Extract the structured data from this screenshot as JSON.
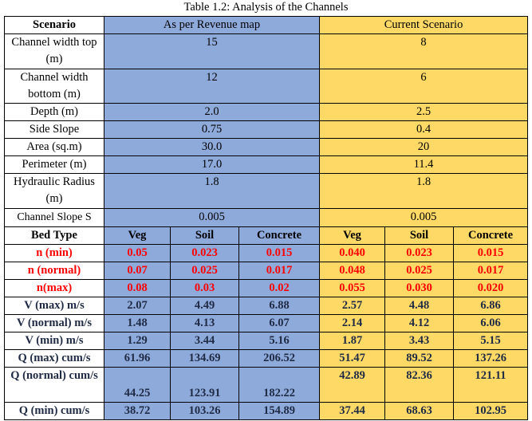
{
  "title": "Table 1.2: Analysis of the Channels",
  "colors": {
    "revenue_bg": "#8eaadb",
    "current_bg": "#ffd966",
    "n_text": "#ff0000"
  },
  "header": {
    "scenario": "Scenario",
    "revenue": "As per Revenue map",
    "current": "Current Scenario"
  },
  "params": [
    {
      "label": "Channel width top (m)",
      "revenue": "15",
      "current": "8"
    },
    {
      "label": "Channel width bottom (m)",
      "revenue": "12",
      "current": "6"
    },
    {
      "label": "Depth (m)",
      "revenue": "2.0",
      "current": "2.5"
    },
    {
      "label": "Side Slope",
      "revenue": "0.75",
      "current": "0.4"
    },
    {
      "label": "Area (sq.m)",
      "revenue": "30.0",
      "current": "20"
    },
    {
      "label": "Perimeter (m)",
      "revenue": "17.0",
      "current": "11.4"
    },
    {
      "label": "Hydraulic Radius  (m)",
      "revenue": "1.8",
      "current": "1.8"
    },
    {
      "label": "Channel Slope S",
      "revenue": "0.005",
      "current": "0.005"
    }
  ],
  "bed_header": {
    "label": "Bed Type",
    "cols": [
      "Veg",
      "Soil",
      "Concrete",
      "Veg",
      "Soil",
      "Concrete"
    ]
  },
  "rows": [
    {
      "label": "n (min)",
      "values": [
        "0.05",
        "0.023",
        "0.015",
        "0.040",
        "0.023",
        "0.015"
      ]
    },
    {
      "label": "n (normal)",
      "values": [
        "0.07",
        "0.025",
        "0.017",
        "0.048",
        "0.025",
        "0.017"
      ]
    },
    {
      "label": "n(max)",
      "values": [
        "0.08",
        "0.03",
        "0.02",
        "0.055",
        "0.030",
        "0.020"
      ]
    },
    {
      "label": "V (max) m/s",
      "values": [
        "2.07",
        "4.49",
        "6.88",
        "2.57",
        "4.48",
        "6.86"
      ]
    },
    {
      "label": "V (normal) m/s",
      "values": [
        "1.48",
        "4.13",
        "6.07",
        "2.14",
        "4.12",
        "6.06"
      ]
    },
    {
      "label": "V (min) m/s",
      "values": [
        "1.29",
        "3.44",
        "5.16",
        "1.87",
        "3.43",
        "5.15"
      ]
    },
    {
      "label": "Q (max) cum/s",
      "values": [
        "61.96",
        "134.69",
        "206.52",
        "51.47",
        "89.52",
        "137.26"
      ]
    },
    {
      "label": "Q (normal) cum/s",
      "values": [
        "44.25",
        "123.91",
        "182.22",
        "42.89",
        "82.36",
        "121.11"
      ]
    },
    {
      "label": "Q (min) cum/s",
      "values": [
        "38.72",
        "103.26",
        "154.89",
        "37.44",
        "68.63",
        "102.95"
      ]
    }
  ]
}
